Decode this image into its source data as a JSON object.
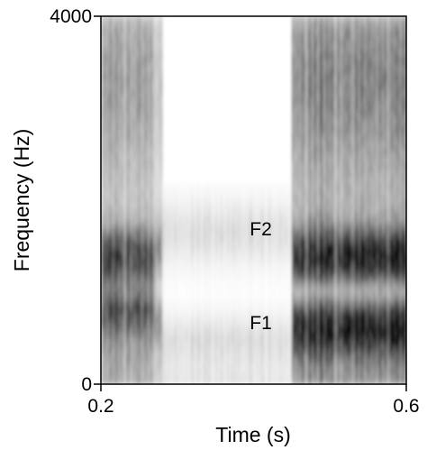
{
  "chart_data": {
    "type": "heatmap",
    "subtype": "spectrogram",
    "title": "",
    "xlabel": "Time (s)",
    "ylabel": "Frequency (Hz)",
    "xlim": [
      0.2,
      0.6
    ],
    "ylim": [
      0,
      4000
    ],
    "x_tick_labels": [
      "0.2",
      "0.6"
    ],
    "y_tick_labels": [
      "0",
      "4000"
    ],
    "colormap": "grayscale (white = low energy, black = high energy)",
    "grid": false,
    "legend": "none",
    "segments": [
      {
        "t_start": 0.2,
        "t_end": 0.27,
        "kind": "voiced",
        "intensity": 0.55,
        "formants_hz": [
          850,
          1400
        ]
      },
      {
        "t_start": 0.27,
        "t_end": 0.28,
        "kind": "transition",
        "intensity": 0.35,
        "formants_hz": [
          700,
          1500
        ]
      },
      {
        "t_start": 0.28,
        "t_end": 0.45,
        "kind": "low-energy",
        "intensity": 0.18,
        "formants_hz": [
          500,
          1650
        ]
      },
      {
        "t_start": 0.45,
        "t_end": 0.6,
        "kind": "voiced",
        "intensity": 0.72,
        "formants_hz": [
          600,
          1400
        ]
      }
    ],
    "annotations": [
      {
        "text": "F1",
        "t": 0.395,
        "hz": 600
      },
      {
        "text": "F2",
        "t": 0.395,
        "hz": 1620
      }
    ]
  },
  "colors": {
    "background": "#ffffff",
    "ink": "#000000"
  }
}
